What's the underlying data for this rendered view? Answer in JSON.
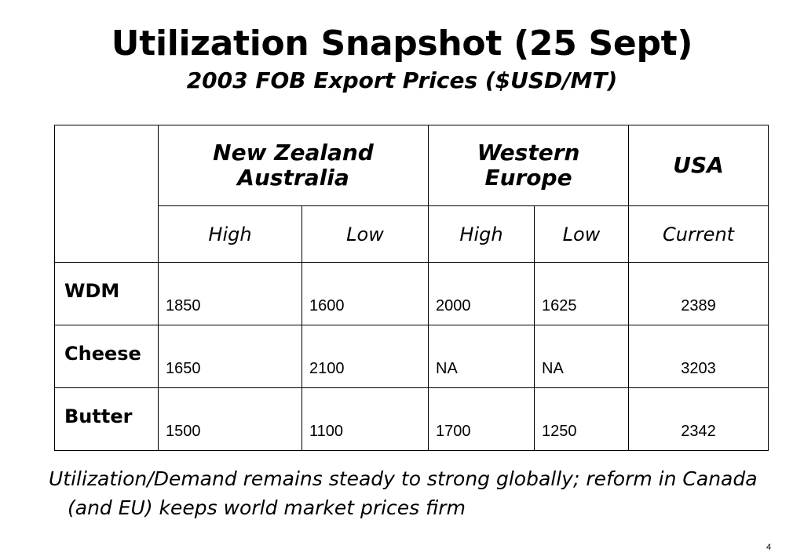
{
  "slide": {
    "title": "Utilization Snapshot (25 Sept)",
    "subtitle": "2003 FOB Export Prices ($USD/MT)",
    "page_number": "4",
    "note": "Utilization/Demand remains steady to strong globally; reform in Canada (and EU) keeps world market prices firm"
  },
  "table": {
    "regions": [
      {
        "label_line1": "New Zealand",
        "label_line2": "Australia"
      },
      {
        "label_line1": "Western",
        "label_line2": "Europe"
      },
      {
        "label_line1": "USA",
        "label_line2": ""
      }
    ],
    "subheaders": [
      "High",
      "Low",
      "High",
      "Low",
      "Current"
    ],
    "rows": [
      {
        "product": "WDM",
        "values": [
          "1850",
          "1600",
          "2000",
          "1625",
          "2389"
        ]
      },
      {
        "product": "Cheese",
        "values": [
          "1650",
          "2100",
          "NA",
          "NA",
          "3203"
        ]
      },
      {
        "product": "Butter",
        "values": [
          "1500",
          "1100",
          "1700",
          "1250",
          "2342"
        ]
      }
    ]
  }
}
